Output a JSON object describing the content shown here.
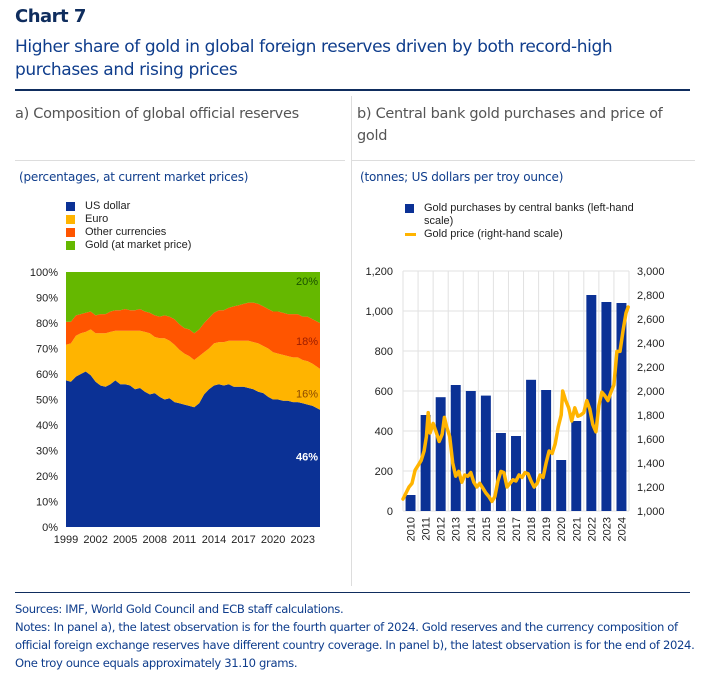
{
  "header": {
    "chart_label": "Chart 7",
    "title": "Higher share of gold in global foreign reserves driven by both record-high purchases and rising prices"
  },
  "panels": {
    "a": {
      "title": "a) Composition of global official reserves",
      "units": "(percentages, at current market prices)"
    },
    "b": {
      "title": "b) Central bank gold purchases and price of gold",
      "units": "(tonnes; US dollars per troy ounce)"
    }
  },
  "colors": {
    "us_dollar": "#0b3195",
    "euro": "#ffb400",
    "other": "#ff5500",
    "gold": "#65b800",
    "bars": "#0b3195",
    "price_line": "#ffb400",
    "title": "#0f2d5e",
    "subtitle": "#0f3d8c"
  },
  "chart_data": [
    {
      "type": "area",
      "title": "a) Composition of global official reserves",
      "subtitle": "(percentages, at current market prices)",
      "stacked": true,
      "xlabel": "",
      "ylabel": "",
      "ylim": [
        0,
        100
      ],
      "xlim": [
        1999,
        2024.75
      ],
      "y_ticks": [
        "0%",
        "10%",
        "20%",
        "30%",
        "40%",
        "50%",
        "60%",
        "70%",
        "80%",
        "90%",
        "100%"
      ],
      "x_ticks": [
        "1999",
        "2002",
        "2005",
        "2008",
        "2011",
        "2014",
        "2017",
        "2020",
        "2023"
      ],
      "legend_position": "top-left",
      "x": [
        1999,
        1999.5,
        2000,
        2000.5,
        2001,
        2001.5,
        2002,
        2002.5,
        2003,
        2003.5,
        2004,
        2004.5,
        2005,
        2005.5,
        2006,
        2006.5,
        2007,
        2007.5,
        2008,
        2008.5,
        2009,
        2009.5,
        2010,
        2010.5,
        2011,
        2011.5,
        2012,
        2012.5,
        2013,
        2013.5,
        2014,
        2014.5,
        2015,
        2015.5,
        2016,
        2016.5,
        2017,
        2017.5,
        2018,
        2018.5,
        2019,
        2019.5,
        2020,
        2020.5,
        2021,
        2021.5,
        2022,
        2022.5,
        2023,
        2023.5,
        2024,
        2024.75
      ],
      "series": [
        {
          "name": "US dollar",
          "values": [
            57.5,
            57,
            59,
            60,
            61,
            59.5,
            57,
            55.5,
            55,
            56,
            57.5,
            56,
            56,
            55.5,
            54,
            54.5,
            53,
            52,
            52.5,
            51,
            50,
            50.5,
            49,
            48.5,
            48,
            47.5,
            47,
            48.5,
            52,
            54,
            55.5,
            56,
            55.5,
            56,
            55,
            55,
            55,
            54.5,
            54,
            53,
            52.5,
            51,
            50,
            50,
            49.5,
            49.5,
            49,
            49,
            48.5,
            48,
            47.5,
            46
          ]
        },
        {
          "name": "Euro",
          "values": [
            14,
            15,
            16,
            16,
            15.5,
            18,
            19,
            20.5,
            21,
            20.5,
            19.5,
            21,
            21,
            21.5,
            23,
            22.5,
            23.5,
            24,
            22,
            23,
            24,
            22.5,
            22.5,
            21,
            20,
            19.5,
            18.5,
            18.5,
            16.5,
            16,
            16.5,
            16.5,
            17,
            17,
            18,
            18,
            18,
            18.5,
            18.5,
            19,
            18.5,
            19,
            18.5,
            18,
            18,
            17.5,
            17.5,
            17.5,
            17,
            17,
            16.5,
            16
          ]
        },
        {
          "name": "Other currencies",
          "values": [
            9,
            8.5,
            8,
            7.5,
            7.5,
            7,
            7,
            7.5,
            7.5,
            8,
            8,
            8,
            8.5,
            8,
            8,
            8.5,
            8,
            8,
            8.5,
            8.5,
            9,
            9.5,
            10,
            10,
            10,
            10.5,
            10.5,
            10.5,
            11.5,
            12,
            12,
            12.5,
            12.5,
            13,
            13.5,
            14,
            14.5,
            15,
            15.5,
            15.5,
            15.5,
            15.5,
            16,
            16.5,
            16.5,
            16.5,
            17,
            17,
            17,
            17.5,
            17.5,
            18
          ]
        },
        {
          "name": "Gold (at market price)",
          "values": [
            19.5,
            19.5,
            17,
            16.5,
            16,
            15.5,
            17,
            16.5,
            16.5,
            15.5,
            15,
            15,
            14.5,
            15,
            15,
            14.5,
            15.5,
            16,
            17,
            17.5,
            17,
            17.5,
            18.5,
            20.5,
            22,
            22.5,
            24,
            22.5,
            20,
            18,
            16,
            15,
            15,
            14,
            13.5,
            13,
            12.5,
            12,
            12,
            12.5,
            13.5,
            14.5,
            15.5,
            15.5,
            16,
            16.5,
            16.5,
            16.5,
            17.5,
            17.5,
            18.5,
            20
          ]
        }
      ],
      "annotations": [
        {
          "series": "Gold (at market price)",
          "label": "20%"
        },
        {
          "series": "Other currencies",
          "label": "18%"
        },
        {
          "series": "Euro",
          "label": "16%"
        },
        {
          "series": "US dollar",
          "label": "46%"
        }
      ]
    },
    {
      "type": "bar",
      "title": "b) Central bank gold purchases and price of gold",
      "subtitle": "(tonnes; US dollars per troy ounce)",
      "categories": [
        "2010",
        "2011",
        "2012",
        "2013",
        "2014",
        "2015",
        "2016",
        "2017",
        "2018",
        "2019",
        "2020",
        "2021",
        "2022",
        "2023",
        "2024"
      ],
      "series": [
        {
          "name": "Gold purchases by central banks (left-hand scale)",
          "type": "bar",
          "axis": "left",
          "values": [
            80,
            480,
            569,
            630,
            600,
            577,
            390,
            375,
            656,
            605,
            255,
            450,
            1080,
            1045,
            1040
          ]
        },
        {
          "name": "Gold price (right-hand scale)",
          "type": "line",
          "axis": "right",
          "x": [
            2010.0,
            2010.2,
            2010.4,
            2010.6,
            2010.8,
            2011.0,
            2011.2,
            2011.4,
            2011.55,
            2011.67,
            2011.8,
            2012.0,
            2012.2,
            2012.4,
            2012.6,
            2012.75,
            2012.9,
            2013.1,
            2013.3,
            2013.5,
            2013.7,
            2013.9,
            2014.1,
            2014.3,
            2014.5,
            2014.7,
            2014.9,
            2015.1,
            2015.3,
            2015.5,
            2015.7,
            2015.9,
            2016.1,
            2016.3,
            2016.5,
            2016.7,
            2016.9,
            2017.1,
            2017.3,
            2017.5,
            2017.7,
            2017.9,
            2018.1,
            2018.3,
            2018.5,
            2018.7,
            2018.9,
            2019.1,
            2019.3,
            2019.5,
            2019.7,
            2019.9,
            2020.1,
            2020.3,
            2020.5,
            2020.6,
            2020.8,
            2021.0,
            2021.2,
            2021.4,
            2021.6,
            2021.8,
            2022.0,
            2022.2,
            2022.4,
            2022.6,
            2022.8,
            2023.0,
            2023.2,
            2023.4,
            2023.6,
            2023.8,
            2024.0,
            2024.2,
            2024.4,
            2024.6,
            2024.8,
            2024.95
          ],
          "values": [
            1100,
            1150,
            1200,
            1230,
            1340,
            1380,
            1420,
            1500,
            1620,
            1820,
            1650,
            1730,
            1660,
            1580,
            1640,
            1780,
            1700,
            1620,
            1400,
            1290,
            1330,
            1240,
            1300,
            1290,
            1320,
            1240,
            1200,
            1230,
            1190,
            1150,
            1120,
            1080,
            1120,
            1250,
            1330,
            1320,
            1200,
            1230,
            1260,
            1250,
            1300,
            1280,
            1320,
            1310,
            1250,
            1200,
            1230,
            1300,
            1280,
            1400,
            1500,
            1480,
            1560,
            1700,
            1800,
            2000,
            1920,
            1860,
            1750,
            1860,
            1790,
            1800,
            1820,
            1920,
            1850,
            1720,
            1660,
            1880,
            1990,
            1960,
            1920,
            1990,
            2050,
            2330,
            2330,
            2500,
            2650,
            2700
          ]
        }
      ],
      "left_axis": {
        "ylim": [
          0,
          1200
        ],
        "ticks": [
          "0",
          "200",
          "400",
          "600",
          "800",
          "1,000",
          "1,200"
        ]
      },
      "right_axis": {
        "ylim": [
          1000,
          3000
        ],
        "ticks": [
          "1,000",
          "1,200",
          "1,400",
          "1,600",
          "1,800",
          "2,000",
          "2,200",
          "2,400",
          "2,600",
          "2,800",
          "3,000"
        ]
      },
      "grid": true,
      "legend_position": "top-left"
    }
  ],
  "footer": {
    "sources": "Sources: IMF, World Gold Council and ECB staff calculations.",
    "notes": "Notes: In panel a), the latest observation is for the fourth quarter of 2024. Gold reserves and the currency composition of official foreign exchange reserves have different country coverage. In panel b), the latest observation is for the end of 2024. One troy ounce equals approximately 31.10 grams."
  }
}
